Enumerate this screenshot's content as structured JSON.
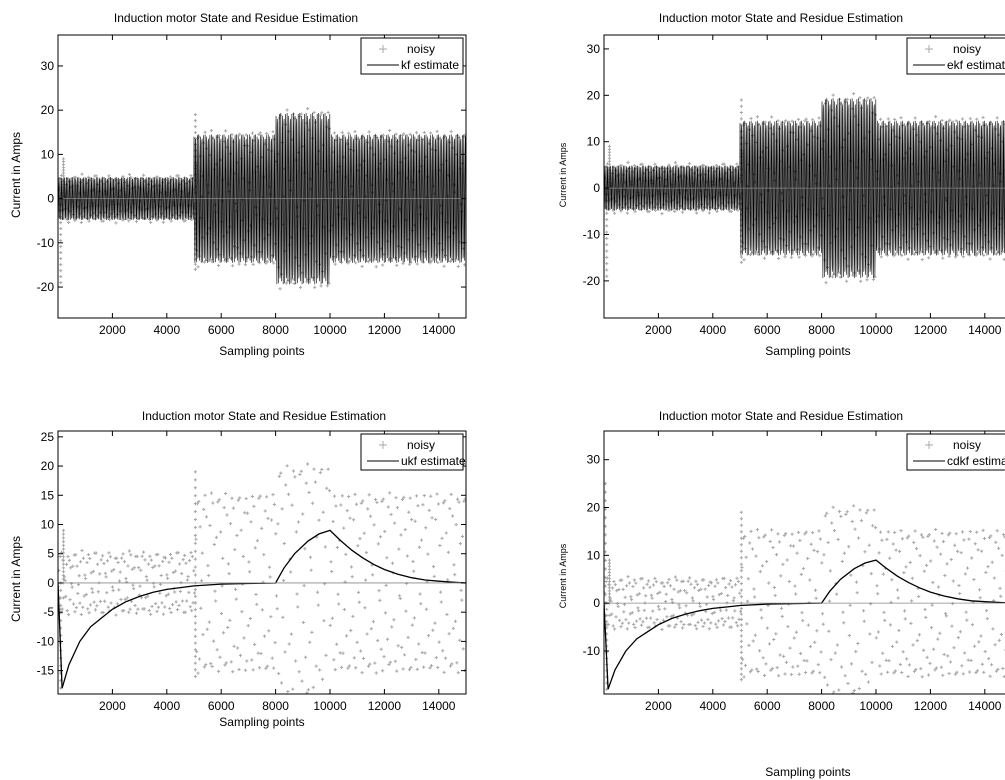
{
  "chart_data": [
    {
      "type": "line",
      "title": "Induction motor State and Residue Estimation",
      "xlabel": "Sampling points",
      "ylabel": "Current in Amps",
      "xlim": [
        0,
        15000
      ],
      "ylim": [
        -27,
        37
      ],
      "xticks": [
        2000,
        4000,
        6000,
        8000,
        10000,
        12000,
        14000
      ],
      "yticks": [
        -20,
        -10,
        0,
        10,
        20,
        30
      ],
      "legend": {
        "placement": "top-right",
        "entries": [
          "noisy",
          "kf estimate"
        ]
      },
      "series": [
        {
          "name": "noisy",
          "marker": "+",
          "color": "#a8a8a8",
          "segments": [
            {
              "x_start": 0,
              "x_end": 5000,
              "amplitude": 5
            },
            {
              "x_start": 5000,
              "x_end": 8000,
              "amplitude": 15
            },
            {
              "x_start": 8000,
              "x_end": 10000,
              "amplitude": 20
            },
            {
              "x_start": 10000,
              "x_end": 15000,
              "amplitude": 15
            }
          ],
          "spikes": [
            {
              "x": 100,
              "y": -19
            },
            {
              "x": 200,
              "y": 9
            },
            {
              "x": 5050,
              "y": 19
            },
            {
              "x": 5050,
              "y": -16
            }
          ]
        },
        {
          "name": "kf estimate",
          "color": "#000000",
          "tracks": "signal",
          "residue": [
            [
              0,
              0
            ],
            [
              15000,
              0
            ]
          ]
        }
      ]
    },
    {
      "type": "line",
      "title": "Induction motor State and Residue Estimation",
      "xlabel": "Sampling points",
      "ylabel": "Current in Amps",
      "xlim": [
        0,
        15000
      ],
      "ylim": [
        -28,
        33
      ],
      "xticks": [
        2000,
        4000,
        6000,
        8000,
        10000,
        12000,
        14000
      ],
      "yticks": [
        -20,
        -10,
        0,
        10,
        20,
        30
      ],
      "legend": {
        "placement": "top-right",
        "entries": [
          "noisy",
          "ekf estimate"
        ]
      },
      "series": [
        {
          "name": "noisy",
          "marker": "+",
          "color": "#a8a8a8",
          "segments": [
            {
              "x_start": 0,
              "x_end": 5000,
              "amplitude": 5
            },
            {
              "x_start": 5000,
              "x_end": 8000,
              "amplitude": 15
            },
            {
              "x_start": 8000,
              "x_end": 10000,
              "amplitude": 20
            },
            {
              "x_start": 10000,
              "x_end": 15000,
              "amplitude": 15
            }
          ],
          "spikes": [
            {
              "x": 100,
              "y": -19
            },
            {
              "x": 200,
              "y": 9
            },
            {
              "x": 5050,
              "y": 19
            },
            {
              "x": 5050,
              "y": -16
            }
          ]
        },
        {
          "name": "ekf estimate",
          "color": "#000000",
          "tracks": "signal",
          "residue": [
            [
              0,
              0
            ],
            [
              15000,
              0
            ]
          ]
        }
      ]
    },
    {
      "type": "line",
      "title": "Induction motor State and Residue Estimation",
      "xlabel": "Sampling points",
      "ylabel": "Current in Amps",
      "xlim": [
        0,
        15000
      ],
      "ylim": [
        -19,
        26
      ],
      "xticks": [
        2000,
        4000,
        6000,
        8000,
        10000,
        12000,
        14000
      ],
      "yticks": [
        -15,
        -10,
        -5,
        0,
        5,
        10,
        15,
        20,
        25
      ],
      "legend": {
        "placement": "top-right",
        "entries": [
          "noisy",
          "ukf estimate"
        ]
      },
      "series": [
        {
          "name": "noisy",
          "marker": "+",
          "color": "#a8a8a8",
          "segments": [
            {
              "x_start": 0,
              "x_end": 5000,
              "amplitude": 5
            },
            {
              "x_start": 5000,
              "x_end": 8000,
              "amplitude": 15
            },
            {
              "x_start": 8000,
              "x_end": 10000,
              "amplitude": 20
            },
            {
              "x_start": 10000,
              "x_end": 15000,
              "amplitude": 15
            }
          ],
          "spikes": [
            {
              "x": 100,
              "y": -18
            },
            {
              "x": 200,
              "y": 9
            },
            {
              "x": 5050,
              "y": 19
            },
            {
              "x": 5050,
              "y": -16
            }
          ]
        },
        {
          "name": "ukf estimate",
          "color": "#000000",
          "points": [
            [
              0,
              0
            ],
            [
              150,
              -18
            ],
            [
              400,
              -14
            ],
            [
              800,
              -10
            ],
            [
              1200,
              -7.5
            ],
            [
              1600,
              -6
            ],
            [
              2000,
              -4.5
            ],
            [
              2500,
              -3.2
            ],
            [
              3000,
              -2.3
            ],
            [
              3500,
              -1.6
            ],
            [
              4000,
              -1.1
            ],
            [
              4500,
              -0.8
            ],
            [
              5000,
              -0.5
            ],
            [
              6000,
              -0.2
            ],
            [
              7000,
              -0.1
            ],
            [
              8000,
              0
            ],
            [
              8300,
              2.5
            ],
            [
              8700,
              5
            ],
            [
              9200,
              7.2
            ],
            [
              9600,
              8.4
            ],
            [
              10000,
              9
            ],
            [
              10400,
              7.2
            ],
            [
              10800,
              5.6
            ],
            [
              11200,
              4.3
            ],
            [
              11600,
              3.2
            ],
            [
              12000,
              2.3
            ],
            [
              12500,
              1.5
            ],
            [
              13000,
              0.9
            ],
            [
              13500,
              0.5
            ],
            [
              14000,
              0.3
            ],
            [
              14500,
              0.15
            ],
            [
              15000,
              0
            ]
          ]
        }
      ]
    },
    {
      "type": "line",
      "title": "Induction motor State and Residue Estimation",
      "xlabel": "Sampling points",
      "ylabel": "Current in Amps",
      "xlim": [
        0,
        15000
      ],
      "ylim": [
        -19,
        36
      ],
      "xticks": [
        2000,
        4000,
        6000,
        8000,
        10000,
        12000,
        14000
      ],
      "yticks": [
        -10,
        0,
        10,
        20,
        30
      ],
      "legend": {
        "placement": "top-right",
        "entries": [
          "noisy",
          "cdkf estimate"
        ]
      },
      "series": [
        {
          "name": "noisy",
          "marker": "+",
          "color": "#a8a8a8",
          "segments": [
            {
              "x_start": 0,
              "x_end": 5000,
              "amplitude": 5
            },
            {
              "x_start": 5000,
              "x_end": 8000,
              "amplitude": 15
            },
            {
              "x_start": 8000,
              "x_end": 10000,
              "amplitude": 20
            },
            {
              "x_start": 10000,
              "x_end": 15000,
              "amplitude": 15
            }
          ],
          "spikes": [
            {
              "x": 50,
              "y": 25
            },
            {
              "x": 100,
              "y": -18
            },
            {
              "x": 200,
              "y": 9
            },
            {
              "x": 5050,
              "y": 19
            },
            {
              "x": 5050,
              "y": -16
            }
          ]
        },
        {
          "name": "cdkf estimate",
          "color": "#000000",
          "points": [
            [
              0,
              0
            ],
            [
              150,
              -18
            ],
            [
              400,
              -14
            ],
            [
              800,
              -10
            ],
            [
              1200,
              -7.5
            ],
            [
              1600,
              -6
            ],
            [
              2000,
              -4.5
            ],
            [
              2500,
              -3.2
            ],
            [
              3000,
              -2.3
            ],
            [
              3500,
              -1.6
            ],
            [
              4000,
              -1.1
            ],
            [
              4500,
              -0.8
            ],
            [
              5000,
              -0.5
            ],
            [
              6000,
              -0.2
            ],
            [
              7000,
              -0.1
            ],
            [
              8000,
              0
            ],
            [
              8300,
              2.5
            ],
            [
              8700,
              5
            ],
            [
              9200,
              7.2
            ],
            [
              9600,
              8.4
            ],
            [
              10000,
              9
            ],
            [
              10400,
              7.2
            ],
            [
              10800,
              5.6
            ],
            [
              11200,
              4.3
            ],
            [
              11600,
              3.2
            ],
            [
              12000,
              2.3
            ],
            [
              12500,
              1.5
            ],
            [
              13000,
              0.9
            ],
            [
              13500,
              0.5
            ],
            [
              14000,
              0.3
            ],
            [
              14500,
              0.15
            ],
            [
              15000,
              0
            ]
          ]
        }
      ]
    }
  ]
}
